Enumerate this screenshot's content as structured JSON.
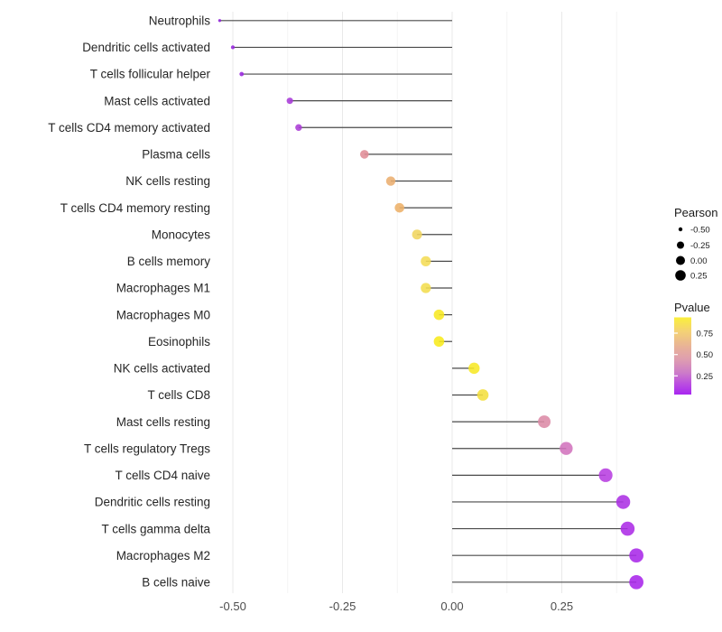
{
  "chart_data": {
    "type": "lollipop",
    "orientation": "horizontal",
    "title": "",
    "xlabel": "",
    "ylabel": "",
    "baseline": 0,
    "x_axis": {
      "tick_labels": [
        "-0.50",
        "-0.25",
        "0.00",
        "0.25"
      ],
      "tick_values": [
        -0.5,
        -0.25,
        0.0,
        0.25
      ],
      "minor_tick_values": [
        -0.375,
        -0.125,
        0.125,
        0.375
      ],
      "range": [
        -0.56,
        0.47
      ],
      "grid": true
    },
    "rows": [
      {
        "label": "Neutrophils",
        "pearson": -0.53,
        "color": "#8E20D8"
      },
      {
        "label": "Dendritic cells activated",
        "pearson": -0.5,
        "color": "#9526DC"
      },
      {
        "label": "T cells follicular helper",
        "pearson": -0.48,
        "color": "#9827DE"
      },
      {
        "label": "Mast cells activated",
        "pearson": -0.37,
        "color": "#A73AD8"
      },
      {
        "label": "T cells CD4 memory activated",
        "pearson": -0.35,
        "color": "#AB3CD6"
      },
      {
        "label": "Plasma cells",
        "pearson": -0.2,
        "color": "#E08C96"
      },
      {
        "label": "NK cells resting",
        "pearson": -0.14,
        "color": "#EBAE70"
      },
      {
        "label": "T cells CD4 memory resting",
        "pearson": -0.12,
        "color": "#EDB169"
      },
      {
        "label": "Monocytes",
        "pearson": -0.08,
        "color": "#F0D55E"
      },
      {
        "label": "B cells memory",
        "pearson": -0.06,
        "color": "#F4DC55"
      },
      {
        "label": "Macrophages M1",
        "pearson": -0.06,
        "color": "#F3DD4E"
      },
      {
        "label": "Macrophages M0",
        "pearson": -0.03,
        "color": "#F7E822"
      },
      {
        "label": "Eosinophils",
        "pearson": -0.03,
        "color": "#F8EB1C"
      },
      {
        "label": "NK cells activated",
        "pearson": 0.05,
        "color": "#F7E827"
      },
      {
        "label": "T cells CD8",
        "pearson": 0.07,
        "color": "#F4DF3C"
      },
      {
        "label": "Mast cells resting",
        "pearson": 0.21,
        "color": "#DC8AA6"
      },
      {
        "label": "T cells regulatory  Tregs",
        "pearson": 0.26,
        "color": "#D173BD"
      },
      {
        "label": "T cells CD4 naive",
        "pearson": 0.35,
        "color": "#B73EE0"
      },
      {
        "label": "Dendritic cells resting",
        "pearson": 0.39,
        "color": "#AC30E4"
      },
      {
        "label": "T cells gamma delta",
        "pearson": 0.4,
        "color": "#AC2BE6"
      },
      {
        "label": "Macrophages M2",
        "pearson": 0.42,
        "color": "#A928E8"
      },
      {
        "label": "B cells naive",
        "pearson": 0.42,
        "color": "#A826EA"
      }
    ],
    "size_legend": {
      "title": "Pearson",
      "break_labels": [
        "-0.50",
        "-0.25",
        "0.00",
        "0.25"
      ],
      "break_values": [
        -0.5,
        -0.25,
        0.0,
        0.25
      ],
      "dot_color": "#000000"
    },
    "color_legend": {
      "title": "Pvalue",
      "tick_labels": [
        "0.75",
        "0.50",
        "0.25"
      ],
      "tick_values": [
        0.75,
        0.5,
        0.25
      ],
      "gradient_stops": [
        {
          "at": 0.0,
          "color": "#FAEF3B"
        },
        {
          "at": 0.18,
          "color": "#F4D275"
        },
        {
          "at": 0.4,
          "color": "#E7AF9B"
        },
        {
          "at": 0.55,
          "color": "#DE9DB0"
        },
        {
          "at": 0.72,
          "color": "#CC7BC9"
        },
        {
          "at": 0.88,
          "color": "#B848E3"
        },
        {
          "at": 1.0,
          "color": "#A826F0"
        }
      ],
      "legend_position": "right"
    },
    "style_colors": {
      "major_grid": "#e9e9e9",
      "minor_grid": "#f4f4f4",
      "stem": "#4a4a4a",
      "category_text": "#262626",
      "axis_text": "#4d4d4d",
      "legend_text": "#1a1a1a"
    }
  }
}
